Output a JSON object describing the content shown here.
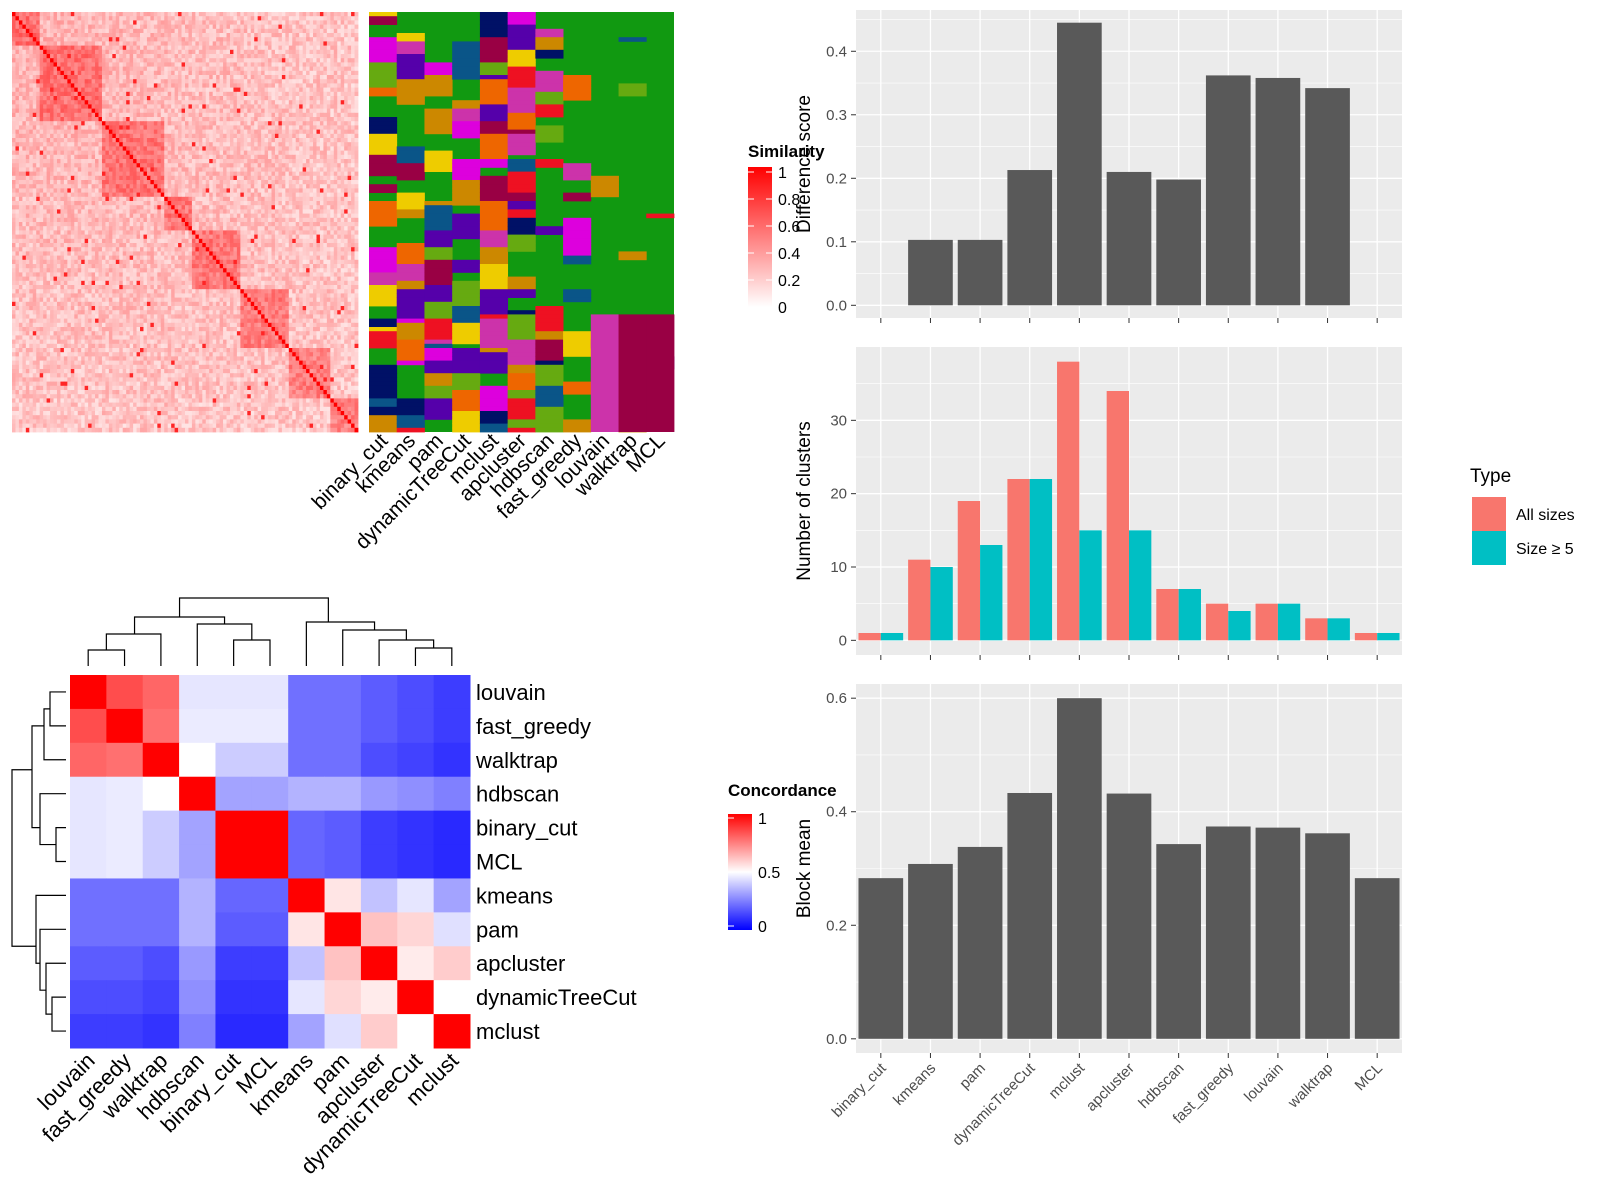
{
  "colors": {
    "panel_bg": "#ebebeb",
    "grid": "#ffffff",
    "bar": "#595959",
    "all_sizes": "#f8766d",
    "size_ge5": "#00bfc4",
    "heat_high": "#ff0000",
    "heat_low_blue": "#0000ff",
    "class_green": "#119911"
  },
  "similarity_heatmap": {
    "legend_title": "Similarity",
    "legend_ticks": [
      "1",
      "0.8",
      "0.6",
      "0.4",
      "0.2",
      "0"
    ]
  },
  "membership_columns": [
    "binary_cut",
    "kmeans",
    "pam",
    "dynamicTreeCut",
    "mclust",
    "apcluster",
    "hdbscan",
    "fast_greedy",
    "louvain",
    "walktrap",
    "MCL"
  ],
  "concordance_heatmap": {
    "legend_title": "Concordance",
    "legend_ticks": [
      "1",
      "0.5",
      "0"
    ],
    "methods": [
      "louvain",
      "fast_greedy",
      "walktrap",
      "hdbscan",
      "binary_cut",
      "MCL",
      "kmeans",
      "pam",
      "apcluster",
      "dynamicTreeCut",
      "mclust"
    ],
    "matrix": [
      [
        1.0,
        0.85,
        0.8,
        0.45,
        0.45,
        0.45,
        0.22,
        0.22,
        0.18,
        0.15,
        0.12
      ],
      [
        0.85,
        1.0,
        0.78,
        0.46,
        0.46,
        0.46,
        0.22,
        0.22,
        0.18,
        0.15,
        0.12
      ],
      [
        0.8,
        0.78,
        1.0,
        0.5,
        0.4,
        0.4,
        0.22,
        0.22,
        0.15,
        0.13,
        0.1
      ],
      [
        0.45,
        0.46,
        0.5,
        1.0,
        0.32,
        0.32,
        0.35,
        0.35,
        0.3,
        0.28,
        0.25
      ],
      [
        0.45,
        0.46,
        0.4,
        0.32,
        1.0,
        1.0,
        0.2,
        0.18,
        0.12,
        0.1,
        0.08
      ],
      [
        0.45,
        0.46,
        0.4,
        0.32,
        1.0,
        1.0,
        0.2,
        0.18,
        0.12,
        0.1,
        0.08
      ],
      [
        0.22,
        0.22,
        0.22,
        0.35,
        0.2,
        0.2,
        1.0,
        0.55,
        0.38,
        0.45,
        0.32
      ],
      [
        0.22,
        0.22,
        0.22,
        0.35,
        0.18,
        0.18,
        0.55,
        1.0,
        0.62,
        0.58,
        0.44
      ],
      [
        0.18,
        0.18,
        0.15,
        0.3,
        0.12,
        0.12,
        0.38,
        0.62,
        1.0,
        0.54,
        0.6
      ],
      [
        0.15,
        0.15,
        0.13,
        0.28,
        0.1,
        0.1,
        0.45,
        0.58,
        0.54,
        1.0,
        0.5
      ],
      [
        0.12,
        0.12,
        0.1,
        0.25,
        0.08,
        0.08,
        0.32,
        0.44,
        0.6,
        0.5,
        1.0
      ]
    ]
  },
  "chart_data": [
    {
      "type": "bar",
      "categories": [
        "binary_cut",
        "kmeans",
        "pam",
        "dynamicTreeCut",
        "mclust",
        "apcluster",
        "hdbscan",
        "fast_greedy",
        "louvain",
        "walktrap",
        "MCL"
      ],
      "values": [
        0,
        0.103,
        0.103,
        0.213,
        0.445,
        0.21,
        0.198,
        0.362,
        0.358,
        0.342,
        0
      ],
      "ylabel": "Difference score",
      "ylim": [
        -0.02,
        0.465
      ],
      "yticks": [
        "0.0",
        "0.1",
        "0.2",
        "0.3",
        "0.4"
      ],
      "grid": true
    },
    {
      "type": "bar",
      "categories": [
        "binary_cut",
        "kmeans",
        "pam",
        "dynamicTreeCut",
        "mclust",
        "apcluster",
        "hdbscan",
        "fast_greedy",
        "louvain",
        "walktrap",
        "MCL"
      ],
      "series": [
        {
          "name": "All sizes",
          "values": [
            1,
            11,
            19,
            22,
            38,
            34,
            7,
            5,
            5,
            3,
            1
          ]
        },
        {
          "name": "Size ≥ 5",
          "values": [
            1,
            10,
            13,
            22,
            15,
            15,
            7,
            4,
            5,
            3,
            1
          ]
        }
      ],
      "ylabel": "Number of clusters",
      "ylim": [
        -2,
        40
      ],
      "yticks": [
        "0",
        "10",
        "20",
        "30"
      ],
      "legend_title": "Type",
      "legend_position": "right",
      "grid": true
    },
    {
      "type": "bar",
      "categories": [
        "binary_cut",
        "kmeans",
        "pam",
        "dynamicTreeCut",
        "mclust",
        "apcluster",
        "hdbscan",
        "fast_greedy",
        "louvain",
        "walktrap",
        "MCL"
      ],
      "values": [
        0.283,
        0.308,
        0.338,
        0.433,
        0.6,
        0.432,
        0.343,
        0.374,
        0.372,
        0.362,
        0.283
      ],
      "ylabel": "Block mean",
      "ylim": [
        -0.025,
        0.625
      ],
      "yticks": [
        "0.0",
        "0.2",
        "0.4",
        "0.6"
      ],
      "grid": true
    }
  ]
}
